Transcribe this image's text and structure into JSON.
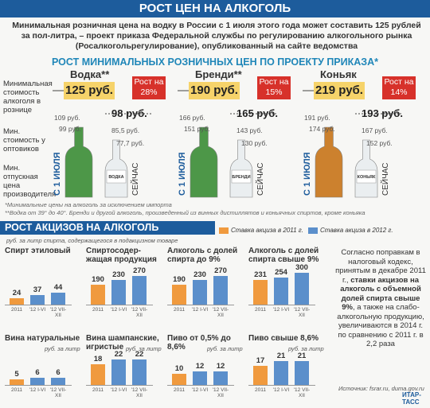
{
  "header": {
    "title": "РОСТ ЦЕН НА АЛКОГОЛЬ"
  },
  "intro": "Минимальная розничная цена на водку в России с 1 июля этого года может составить 125 рублей за пол-литра, – проект приказа Федеральной службы по регулированию алкогольного рынка (Росалкогольрегулирование), опубликованный на сайте ведомства",
  "prices": {
    "title": "РОСТ МИНИМАЛЬНЫХ РОЗНИЧНЫХ ЦЕН ПО ПРОЕКТУ ПРИКАЗА*",
    "row_labels": [
      "Минимальная стоимость алкоголя в рознице",
      "Мин. стоимость у оптовиков",
      "Мин. отпускная цена производителя"
    ],
    "bottle_tags": [
      "С 1 ИЮЛЯ",
      "СЕЙЧАС"
    ],
    "products": [
      {
        "name": "Водка**",
        "new_price": "125 руб.",
        "growth": "Рост на 28%",
        "current_price": "98 руб.",
        "wholesale_new": "109 руб.",
        "producer_new": "99 руб.",
        "wholesale_now": "85,5 руб.",
        "producer_now": "77,7 руб.",
        "bottle_label": "ВОДКА"
      },
      {
        "name": "Бренди**",
        "new_price": "190 руб.",
        "growth": "Рост на 15%",
        "current_price": "165 руб.",
        "wholesale_new": "166 руб.",
        "producer_new": "151 руб.",
        "wholesale_now": "143 руб.",
        "producer_now": "130 руб.",
        "bottle_label": "БРЕНДИ"
      },
      {
        "name": "Коньяк",
        "new_price": "219 руб.",
        "growth": "Рост на 14%",
        "current_price": "193 руб.",
        "wholesale_new": "191 руб.",
        "producer_new": "174 руб.",
        "wholesale_now": "167 руб.",
        "producer_now": "152 руб.",
        "bottle_label": "КОНЬЯК"
      }
    ],
    "footnotes": [
      "*Минимальные цены на алкоголь за исключением импорта",
      "**Водка от 39° до 40°. Бренди и другой алкоголь, произведенный из винных дистиллятов и коньячных спиртов, кроме коньяка"
    ]
  },
  "excise": {
    "title": "РОСТ АКЦИЗОВ НА АЛКОГОЛЬ",
    "unit": "руб. за литр спирта, содержащегося в подакцизном товаре",
    "legend": [
      {
        "label": "Ставка акциза в 2011 г.",
        "color": "#f09a3e"
      },
      {
        "label": "Ставка акциза в 2012 г.",
        "color": "#5b8fcb"
      }
    ],
    "note": [
      "Согласно поправкам в налоговый кодекс, принятым в декабре 2011 г., ",
      "ставки акцизов на алкоголь с объемной долей спирта свыше 9%",
      ", а также на слабо-алкогольную продукцию, увеличиваются в 2014 г. по сравнению с 2011 г. в 2,2 раза"
    ],
    "source": "Источник: fsrar.ru, duma.gov.ru",
    "logo": "ИТАР-ТАСС"
  },
  "chart_data": [
    {
      "type": "bar",
      "title": "Спирт этиловый",
      "categories": [
        "2011",
        "'12 I-VI",
        "'12 VII-XII"
      ],
      "values": [
        24,
        37,
        44
      ],
      "colors": [
        "#f09a3e",
        "#5b8fcb",
        "#5b8fcb"
      ],
      "ylim": [
        0,
        120
      ]
    },
    {
      "type": "bar",
      "title": "Спиртосодер-жащая продукция",
      "categories": [
        "2011",
        "'12 I-VI",
        "'12 VII-XII"
      ],
      "values": [
        190,
        230,
        270
      ],
      "colors": [
        "#f09a3e",
        "#5b8fcb",
        "#5b8fcb"
      ],
      "ylim": [
        0,
        300
      ]
    },
    {
      "type": "bar",
      "title": "Алкоголь с долей спирта до 9%",
      "categories": [
        "2011",
        "'12 I-VI",
        "'12 VII-XII"
      ],
      "values": [
        190,
        230,
        270
      ],
      "colors": [
        "#f09a3e",
        "#5b8fcb",
        "#5b8fcb"
      ],
      "ylim": [
        0,
        300
      ]
    },
    {
      "type": "bar",
      "title": "Алкоголь с долей спирта свыше 9%",
      "categories": [
        "2011",
        "'12 I-VI",
        "'12 VII-XII"
      ],
      "values": [
        231,
        254,
        300
      ],
      "colors": [
        "#f09a3e",
        "#5b8fcb",
        "#5b8fcb"
      ],
      "ylim": [
        0,
        300
      ]
    },
    {
      "type": "bar",
      "title": "Вина натуральные",
      "unit": "руб. за литр",
      "categories": [
        "2011",
        "'12 I-VI",
        "'12 VII-XII"
      ],
      "values": [
        5,
        6,
        6
      ],
      "colors": [
        "#f09a3e",
        "#5b8fcb",
        "#5b8fcb"
      ],
      "ylim": [
        0,
        25
      ]
    },
    {
      "type": "bar",
      "title": "Вина шампанские, игристые",
      "unit": "руб. за литр",
      "categories": [
        "2011",
        "'12 I-VI",
        "'12 VII-XII"
      ],
      "values": [
        18,
        22,
        22
      ],
      "colors": [
        "#f09a3e",
        "#5b8fcb",
        "#5b8fcb"
      ],
      "ylim": [
        0,
        25
      ]
    },
    {
      "type": "bar",
      "title": "Пиво от 0,5% до 8,6%",
      "unit": "руб. за литр",
      "categories": [
        "2011",
        "'12 I-VI",
        "'12 VII-XII"
      ],
      "values": [
        10,
        12,
        12
      ],
      "colors": [
        "#f09a3e",
        "#5b8fcb",
        "#5b8fcb"
      ],
      "ylim": [
        0,
        25
      ]
    },
    {
      "type": "bar",
      "title": "Пиво свыше 8,6%",
      "unit": "руб. за литр",
      "categories": [
        "2011",
        "'12 I-VI",
        "'12 VII-XII"
      ],
      "values": [
        17,
        21,
        21
      ],
      "colors": [
        "#f09a3e",
        "#5b8fcb",
        "#5b8fcb"
      ],
      "ylim": [
        0,
        25
      ]
    }
  ]
}
